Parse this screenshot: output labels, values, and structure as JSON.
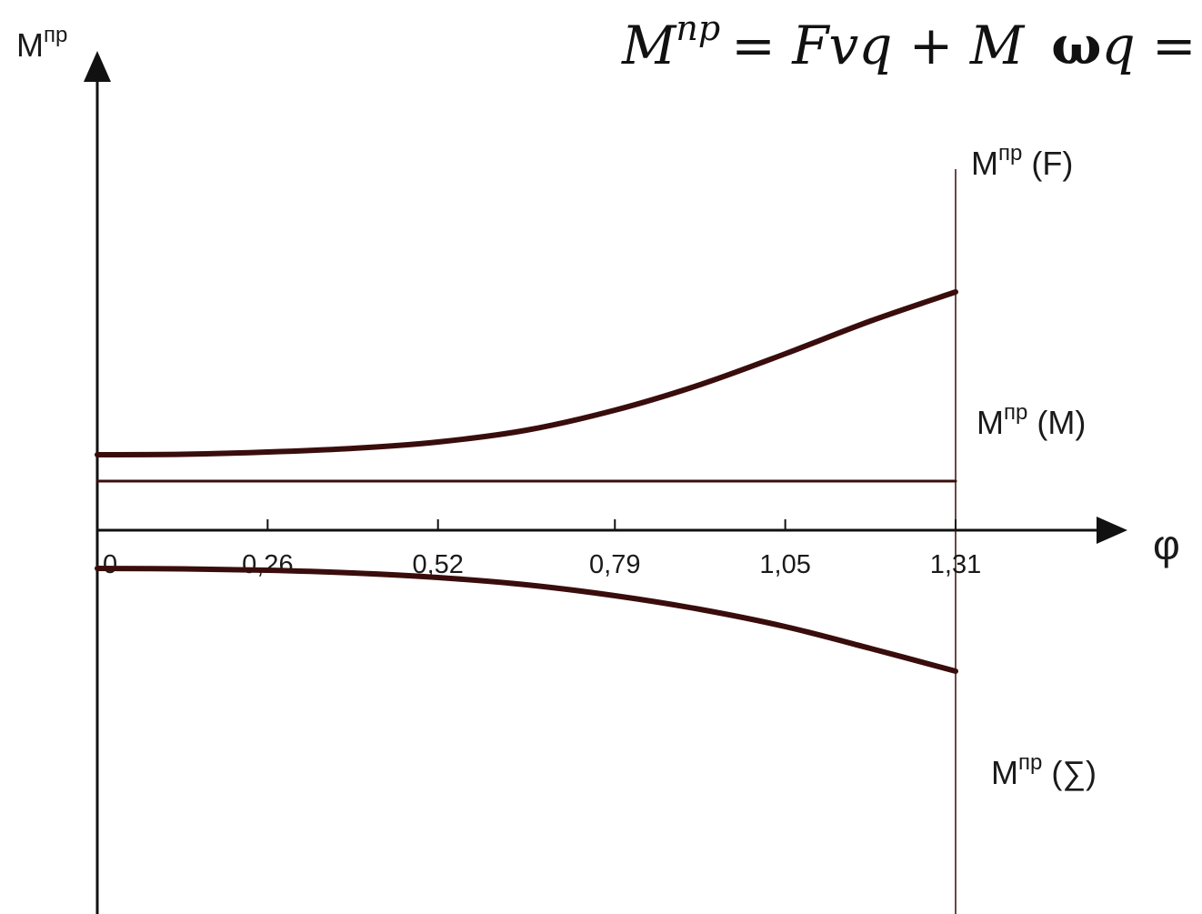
{
  "formula": {
    "lhs_base": "M",
    "lhs_sup": "пр",
    "rhs": "= Fvq + M",
    "omega": "ω",
    "omega_tail": "q ="
  },
  "chart_data": {
    "type": "line",
    "ylabel": {
      "base": "M",
      "sup": "пр"
    },
    "xlabel": "φ",
    "x_ticks": [
      "0",
      "0,26",
      "0,52",
      "0,79",
      "1,05",
      "1,31"
    ],
    "x_tick_values": [
      0,
      0.26,
      0.52,
      0.79,
      1.05,
      1.31
    ],
    "xlim": [
      0,
      1.31
    ],
    "series": [
      {
        "key": "F",
        "name": "Mпр (F)",
        "label_base": "M",
        "label_sup": "пр",
        "label_tail": " (F)",
        "x": [
          0,
          0.13,
          0.26,
          0.39,
          0.52,
          0.655,
          0.79,
          0.92,
          1.05,
          1.18,
          1.31
        ],
        "y": [
          0.83,
          0.835,
          0.86,
          0.9,
          0.97,
          1.1,
          1.32,
          1.6,
          1.94,
          2.3,
          2.62
        ]
      },
      {
        "key": "M",
        "name": "Mпр (M)",
        "label_base": "M",
        "label_sup": "пр",
        "label_tail": " (M)",
        "x": [
          0,
          1.31
        ],
        "y": [
          0.54,
          0.54
        ]
      },
      {
        "key": "S",
        "name": "Mпр (∑)",
        "label_base": "M",
        "label_sup": "пр",
        "label_tail": " (∑)",
        "x": [
          0,
          0.13,
          0.26,
          0.39,
          0.52,
          0.655,
          0.79,
          0.92,
          1.05,
          1.18,
          1.31
        ],
        "y": [
          -0.42,
          -0.425,
          -0.44,
          -0.47,
          -0.52,
          -0.6,
          -0.72,
          -0.87,
          -1.06,
          -1.3,
          -1.55
        ]
      }
    ],
    "grid": false,
    "legend": "right end labels",
    "colors": {
      "curve": "#3a0d0d",
      "axis": "#111111"
    }
  }
}
